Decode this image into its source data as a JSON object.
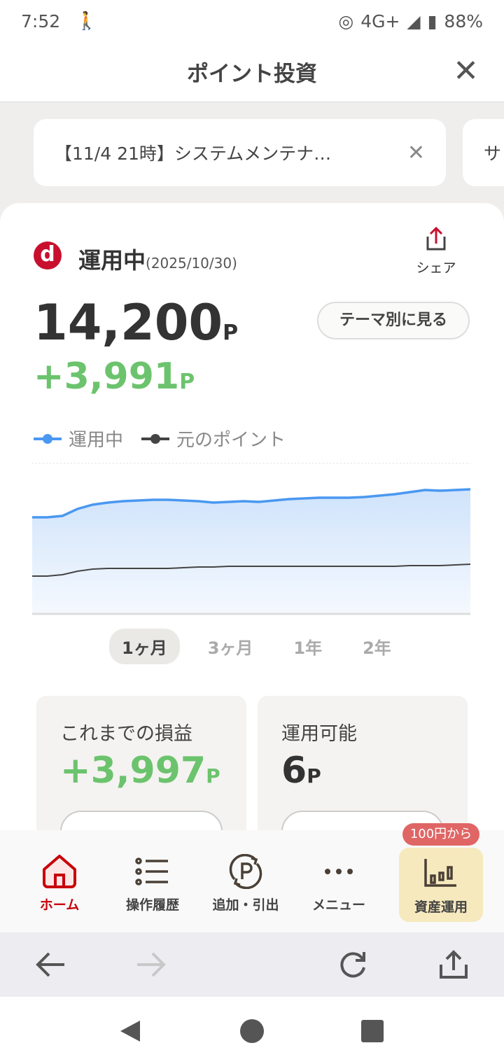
{
  "status": {
    "time": "7:52",
    "network": "4G+",
    "battery": "88%"
  },
  "header": {
    "title": "ポイント投資"
  },
  "notices": [
    {
      "text": "【11/4 21時】システムメンテナ…"
    },
    {
      "text": "サ"
    }
  ],
  "summary": {
    "logo": "d",
    "status_label": "運用中",
    "date": "(2025/10/30)",
    "share_label": "シェア",
    "total": "14,200",
    "unit": "P",
    "gain": "+3,991",
    "theme_button": "テーマ別に見る"
  },
  "legend": [
    {
      "label": "運用中",
      "color": "#4a98f0"
    },
    {
      "label": "元のポイント",
      "color": "#444444"
    }
  ],
  "periods": [
    "1ヶ月",
    "3ヶ月",
    "1年",
    "2年"
  ],
  "selected_period": "1ヶ月",
  "cards": [
    {
      "label": "これまでの損益",
      "value": "+3,997",
      "unit": "P"
    },
    {
      "label": "運用可能",
      "value": "6",
      "unit": "P"
    }
  ],
  "nav": {
    "items": [
      {
        "label": "ホーム",
        "icon": "home-icon"
      },
      {
        "label": "操作履歴",
        "icon": "list-icon"
      },
      {
        "label": "追加・引出",
        "icon": "points-cycle-icon"
      },
      {
        "label": "メニュー",
        "icon": "more-icon"
      },
      {
        "label": "資産運用",
        "icon": "bar-chart-icon"
      }
    ],
    "badge": "100円から"
  },
  "colors": {
    "accent": "#c8000a",
    "gain": "#6cc36d",
    "chart_line": "#4a98f0"
  }
}
